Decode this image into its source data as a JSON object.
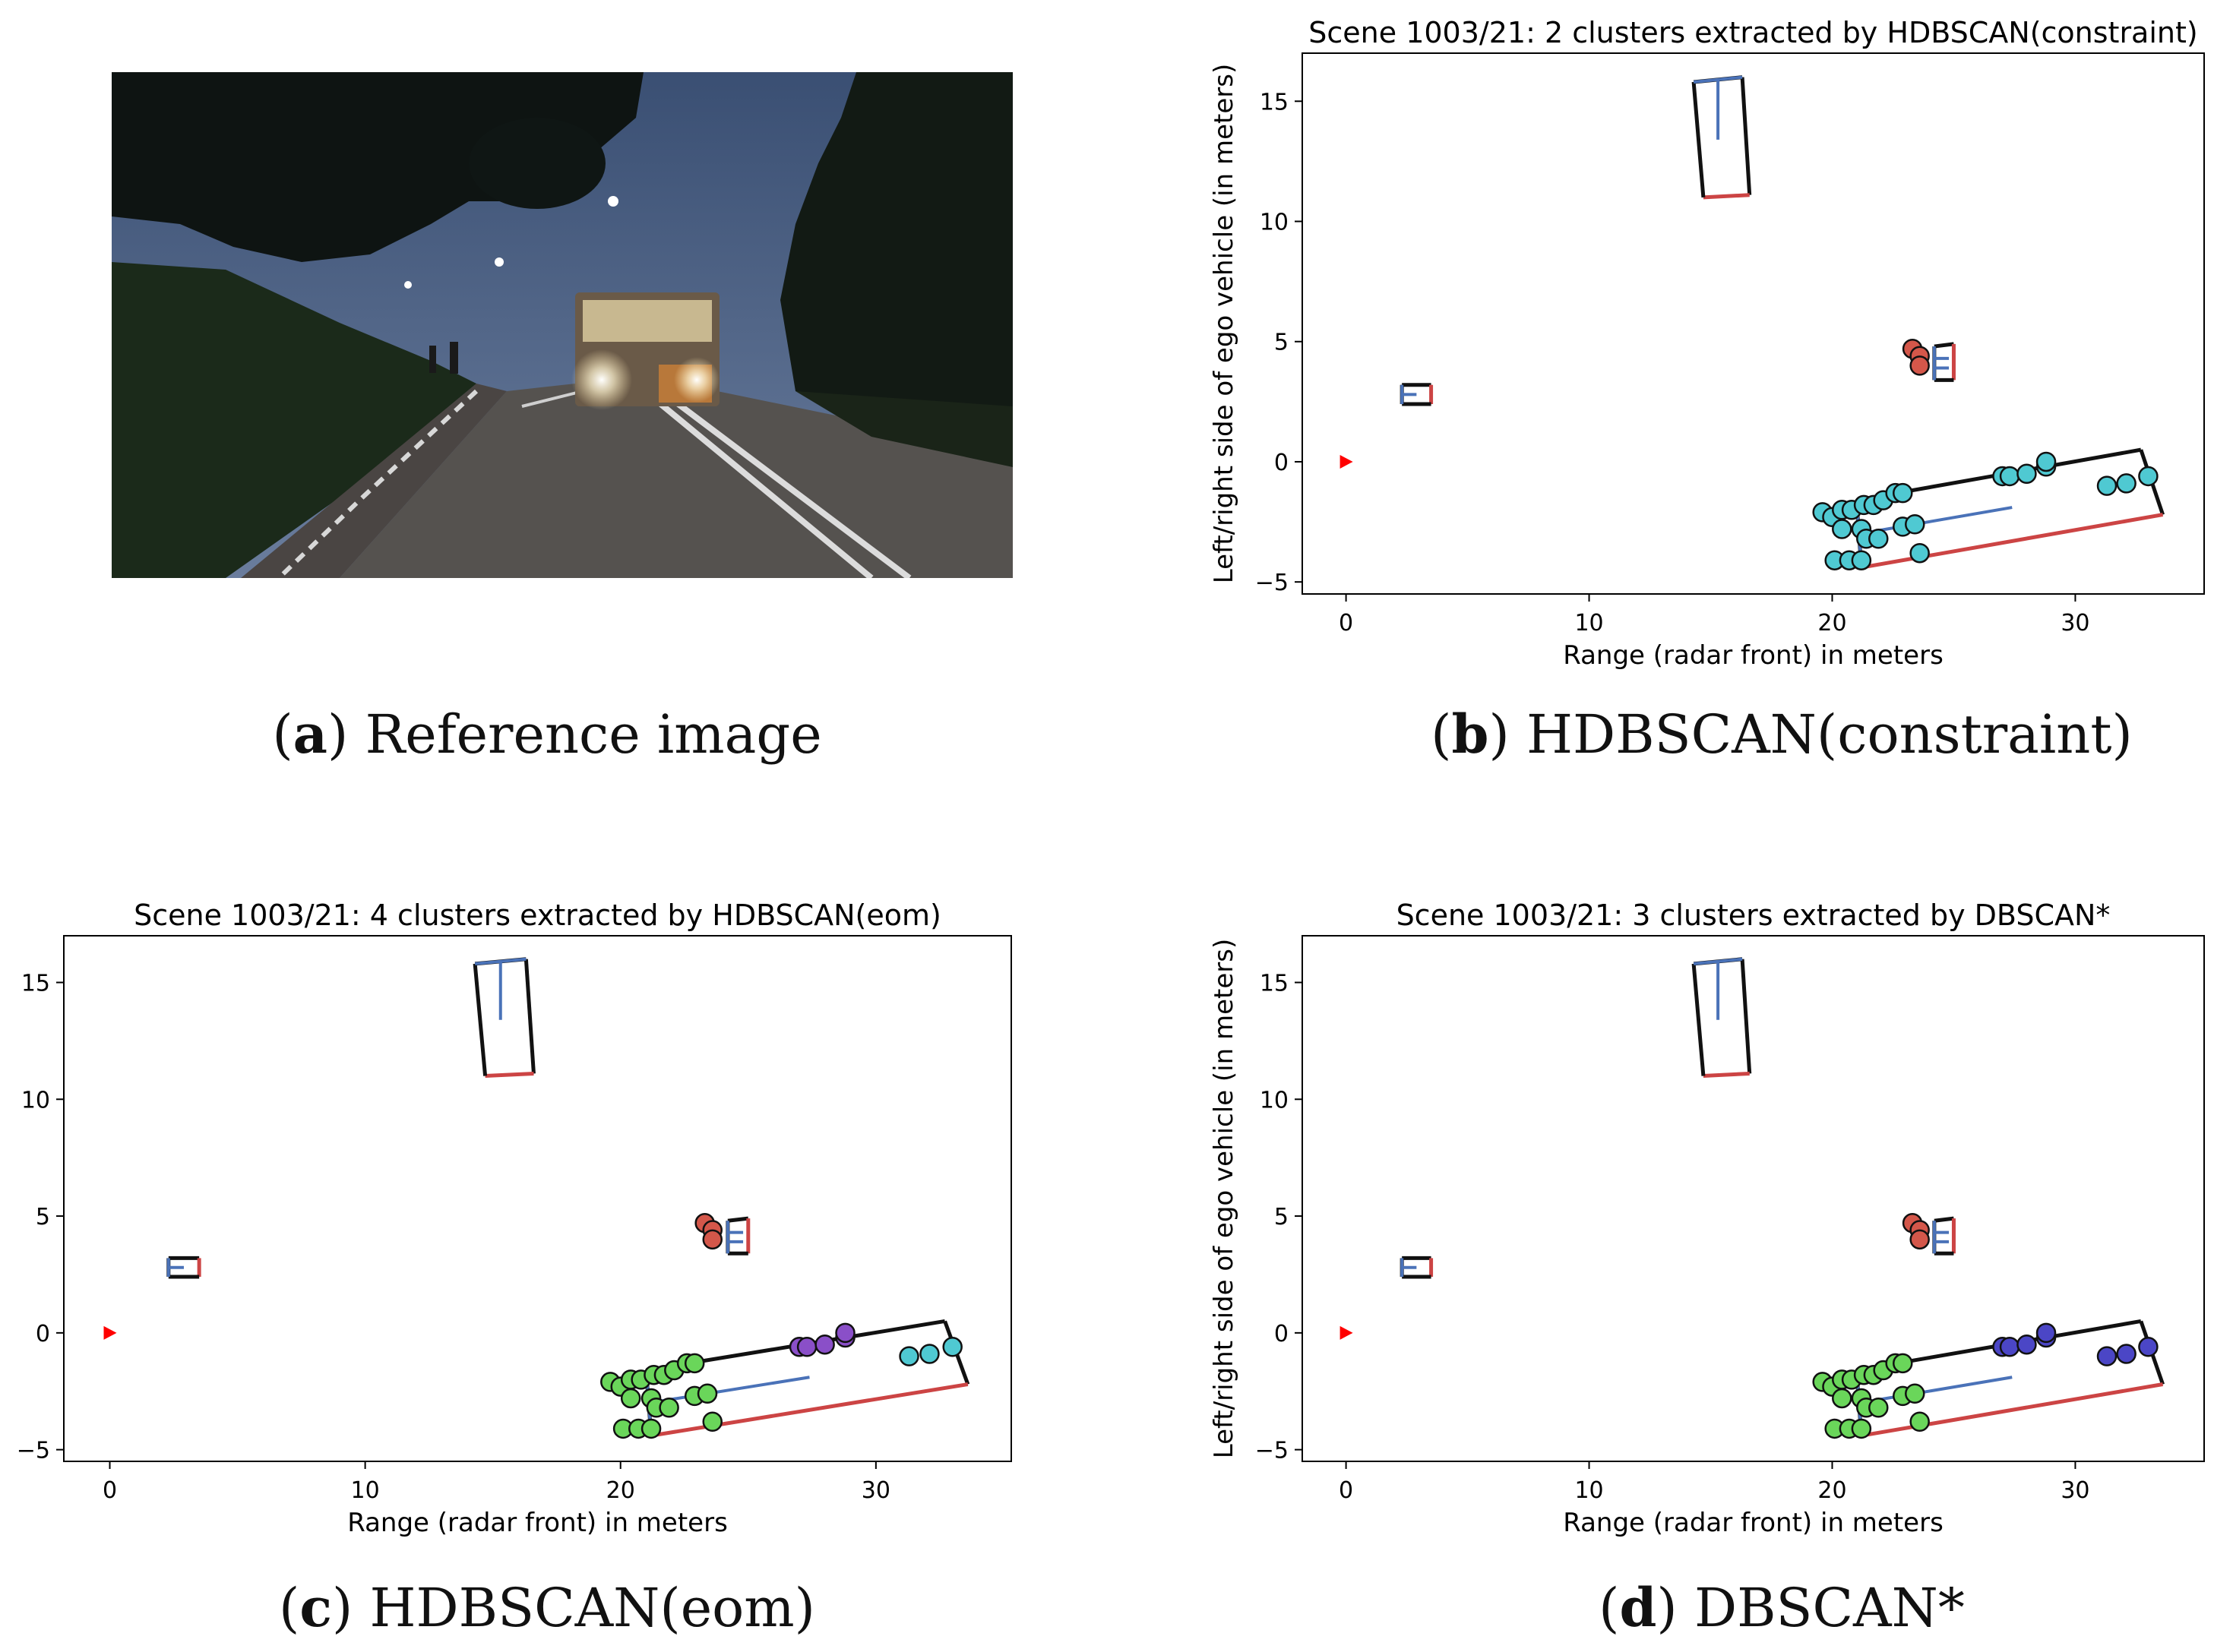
{
  "figure": {
    "captions": [
      {
        "letter": "a",
        "text": "Reference image"
      },
      {
        "letter": "b",
        "text": "HDBSCAN(constraint)"
      },
      {
        "letter": "c",
        "text": "HDBSCAN(eom)"
      },
      {
        "letter": "d",
        "text": "DBSCAN*"
      }
    ]
  },
  "colors": {
    "cyan": "#4fc9d2",
    "green": "#6ad65a",
    "purple": "#8a4fc8",
    "blue": "#4b46c6",
    "red_pts": "#d4574a",
    "box_black": "#111111",
    "box_blue": "#4a72b8",
    "box_red": "#cc4444",
    "ego": "#ff0000"
  },
  "chart_data": [
    {
      "type": "scatter",
      "title": "Scene 1003/21: 2 clusters extracted by HDBSCAN(constraint)",
      "xlabel": "Range (radar front) in meters",
      "ylabel": "Left/right side of ego vehicle (in meters)",
      "xlim": [
        -1.8,
        35.3
      ],
      "ylim": [
        -5.5,
        17
      ],
      "xticks": [
        0,
        10,
        20,
        30
      ],
      "yticks": [
        -5,
        0,
        5,
        10,
        15
      ],
      "point_colors": {
        "bus_front": "cyan",
        "bus_rear": "cyan",
        "bus_end": "cyan",
        "top_group": "red_pts"
      }
    },
    {
      "type": "scatter",
      "title": "Scene 1003/21: 4 clusters extracted by HDBSCAN(eom)",
      "xlabel": "Range (radar front) in meters",
      "ylabel": "Left/right side of ego vehicle (in meters)",
      "xlim": [
        -1.8,
        35.3
      ],
      "ylim": [
        -5.5,
        17
      ],
      "xticks": [
        0,
        10,
        20,
        30
      ],
      "yticks": [
        -5,
        0,
        5,
        10,
        15
      ],
      "point_colors": {
        "bus_front": "green",
        "bus_rear": "purple",
        "bus_end": "cyan",
        "top_group": "red_pts"
      }
    },
    {
      "type": "scatter",
      "title": "Scene 1003/21: 3 clusters extracted by DBSCAN*",
      "xlabel": "Range (radar front) in meters",
      "ylabel": "Left/right side of ego vehicle (in meters)",
      "xlim": [
        -1.8,
        35.3
      ],
      "ylim": [
        -5.5,
        17
      ],
      "xticks": [
        0,
        10,
        20,
        30
      ],
      "yticks": [
        -5,
        0,
        5,
        10,
        15
      ],
      "point_colors": {
        "bus_front": "green",
        "bus_rear": "blue",
        "bus_end": "blue",
        "top_group": "red_pts"
      }
    }
  ],
  "scene": {
    "ego": [
      0,
      0
    ],
    "points": {
      "bus_front": [
        [
          19.6,
          -2.1
        ],
        [
          20.0,
          -2.3
        ],
        [
          20.4,
          -2.0
        ],
        [
          20.8,
          -2.0
        ],
        [
          21.3,
          -1.8
        ],
        [
          21.7,
          -1.8
        ],
        [
          22.1,
          -1.6
        ],
        [
          22.6,
          -1.3
        ],
        [
          22.9,
          -1.3
        ],
        [
          20.4,
          -2.8
        ],
        [
          21.2,
          -2.8
        ],
        [
          21.4,
          -3.2
        ],
        [
          21.9,
          -3.2
        ],
        [
          22.9,
          -2.7
        ],
        [
          23.4,
          -2.6
        ],
        [
          20.1,
          -4.1
        ],
        [
          20.7,
          -4.1
        ],
        [
          21.2,
          -4.1
        ],
        [
          23.6,
          -3.8
        ]
      ],
      "bus_rear": [
        [
          27.0,
          -0.6
        ],
        [
          27.3,
          -0.6
        ],
        [
          28.0,
          -0.5
        ],
        [
          28.8,
          -0.2
        ],
        [
          28.8,
          -0.0
        ]
      ],
      "bus_end": [
        [
          31.3,
          -1.0
        ],
        [
          32.1,
          -0.9
        ],
        [
          33.0,
          -0.6
        ]
      ],
      "top_group": [
        [
          23.3,
          4.7
        ],
        [
          23.6,
          4.4
        ],
        [
          23.6,
          4.0
        ]
      ]
    },
    "boxes": [
      {
        "corners": [
          [
            21.0,
            -1.6
          ],
          [
            32.7,
            0.5
          ],
          [
            33.6,
            -2.2
          ],
          [
            21.2,
            -4.4
          ]
        ],
        "red_edge": 2,
        "blue_axis": [
          [
            21.0,
            -1.6
          ],
          [
            21.2,
            -4.4
          ],
          [
            21.1,
            -3.0
          ],
          [
            27.4,
            -1.9
          ]
        ]
      },
      {
        "corners": [
          [
            14.3,
            15.8
          ],
          [
            16.3,
            16.0
          ],
          [
            16.6,
            11.1
          ],
          [
            14.7,
            11.0
          ]
        ],
        "red_edge": 2,
        "blue_axis": [
          [
            14.3,
            15.8
          ],
          [
            16.3,
            16.0
          ],
          [
            15.3,
            15.9
          ],
          [
            15.3,
            13.4
          ]
        ]
      },
      {
        "corners": [
          [
            2.3,
            3.2
          ],
          [
            3.5,
            3.2
          ],
          [
            3.5,
            2.4
          ],
          [
            2.3,
            2.4
          ]
        ],
        "red_edge": 1,
        "blue_axis": [
          [
            2.3,
            3.2
          ],
          [
            2.3,
            2.4
          ],
          [
            2.3,
            2.8
          ],
          [
            2.9,
            2.8
          ]
        ]
      },
      {
        "corners": [
          [
            24.2,
            4.8
          ],
          [
            25.0,
            4.9
          ],
          [
            25.0,
            3.4
          ],
          [
            24.2,
            3.4
          ]
        ],
        "red_edge": 1,
        "blue_axis": [
          [
            24.2,
            4.8
          ],
          [
            24.2,
            3.4
          ],
          [
            24.2,
            4.3
          ],
          [
            24.8,
            4.3
          ],
          [
            24.2,
            3.9
          ],
          [
            24.8,
            3.9
          ]
        ]
      }
    ]
  }
}
